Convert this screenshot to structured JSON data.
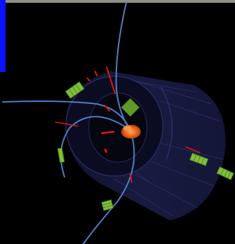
{
  "view": {
    "type": "3d-event-display",
    "background_color": "#000000",
    "top_bar_color": "#8f8f87",
    "side_bar_color": "#0a12ff"
  },
  "scene": {
    "detector_color": "#1c1f4a",
    "track_color": "#4d7fc4",
    "deposit_color": "#e01515",
    "cluster_color": "#7fbf3a",
    "vertex_color": "#ff6a1a"
  }
}
